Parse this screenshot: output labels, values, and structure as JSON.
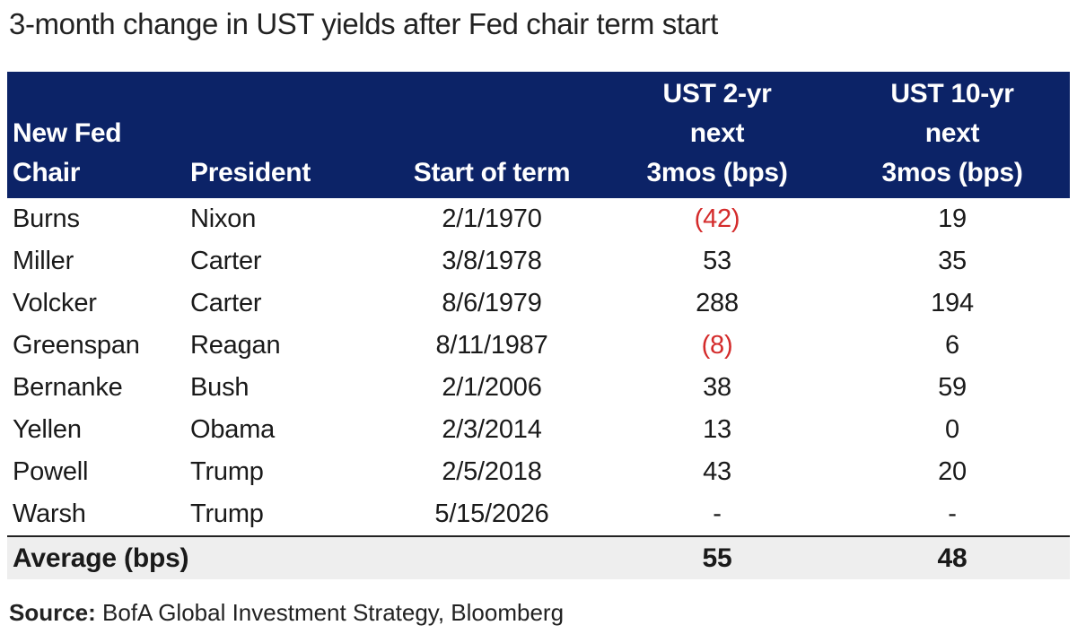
{
  "title": "3-month change in UST yields after Fed chair term start",
  "chart_data": {
    "type": "table",
    "title": "3-month change in UST yields after Fed chair term start",
    "headers": {
      "chair": [
        "New Fed",
        "Chair"
      ],
      "president": "President",
      "start": "Start of term",
      "ust2": [
        "UST 2-yr",
        "next",
        "3mos (bps)"
      ],
      "ust10": [
        "UST 10-yr",
        "next",
        "3mos (bps)"
      ]
    },
    "rows": [
      {
        "chair": "Burns",
        "president": "Nixon",
        "start": "2/1/1970",
        "ust2": "(42)",
        "ust10": "19",
        "ust2_negative": true,
        "ust10_negative": false
      },
      {
        "chair": "Miller",
        "president": "Carter",
        "start": "3/8/1978",
        "ust2": "53",
        "ust10": "35",
        "ust2_negative": false,
        "ust10_negative": false
      },
      {
        "chair": "Volcker",
        "president": "Carter",
        "start": "8/6/1979",
        "ust2": "288",
        "ust10": "194",
        "ust2_negative": false,
        "ust10_negative": false
      },
      {
        "chair": "Greenspan",
        "president": "Reagan",
        "start": "8/11/1987",
        "ust2": "(8)",
        "ust10": "6",
        "ust2_negative": true,
        "ust10_negative": false
      },
      {
        "chair": "Bernanke",
        "president": "Bush",
        "start": "2/1/2006",
        "ust2": "38",
        "ust10": "59",
        "ust2_negative": false,
        "ust10_negative": false
      },
      {
        "chair": "Yellen",
        "president": "Obama",
        "start": "2/3/2014",
        "ust2": "13",
        "ust10": "0",
        "ust2_negative": false,
        "ust10_negative": false
      },
      {
        "chair": "Powell",
        "president": "Trump",
        "start": "2/5/2018",
        "ust2": "43",
        "ust10": "20",
        "ust2_negative": false,
        "ust10_negative": false
      },
      {
        "chair": "Warsh",
        "president": "Trump",
        "start": "5/15/2026",
        "ust2": "-",
        "ust10": "-",
        "ust2_negative": false,
        "ust10_negative": false
      }
    ],
    "average": {
      "label": "Average (bps)",
      "ust2": "55",
      "ust10": "48"
    }
  },
  "source": {
    "label": "Source:",
    "text": " BofA Global Investment Strategy, Bloomberg"
  },
  "colors": {
    "header_bg": "#0c2367",
    "negative": "#d42b2b",
    "average_bg": "#eeeeee"
  }
}
